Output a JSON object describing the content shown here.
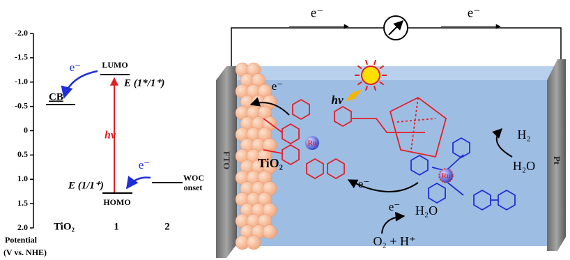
{
  "energy_diagram": {
    "y_ticks": [
      "-2.0",
      "-1.5",
      "-1.0",
      "-0.5",
      "0",
      "0.5",
      "1.0",
      "1.5",
      "2.0"
    ],
    "axis_title": "Potential",
    "axis_unit": "(V vs. NHE)",
    "columns": [
      "TiO₂",
      "1",
      "2"
    ],
    "cb": "CB",
    "lumo": "LUMO",
    "lumo_potential": "E (1*/1⁺)",
    "homo": "HOMO",
    "homo_potential": "E (1/1⁺)",
    "woc": [
      "WOC",
      "onset"
    ],
    "excitation": "hν",
    "electron_labels": [
      "e⁻",
      "e⁻"
    ]
  },
  "cell": {
    "circuit_electrons": [
      "e⁻",
      "e⁻"
    ],
    "anode": "FTO",
    "cathode": "Pt",
    "semiconductor": "TiO₂",
    "light": "hν",
    "metal_centers": [
      "Ru",
      "Ru"
    ],
    "electrons": [
      "e⁻",
      "e⁻",
      "e⁻"
    ],
    "cathode_reaction": {
      "product": "H₂",
      "reactant": "H₂O"
    },
    "anode_reaction": {
      "reactant": "H₂O",
      "product": "O₂ + H⁺"
    }
  }
}
